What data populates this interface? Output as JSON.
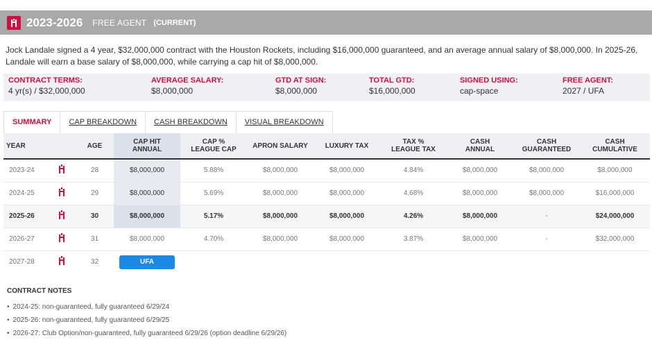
{
  "header": {
    "years": "2023-2026",
    "type": "FREE AGENT",
    "status": "(CURRENT)"
  },
  "description": "Jock Landale signed a 4 year, $32,000,000 contract with the Houston Rockets, including $16,000,000 guaranteed, and an average annual salary of $8,000,000. In 2025-26, Landale will earn a base salary of $8,000,000, while carrying a cap hit of $8,000,000.",
  "terms": [
    {
      "label": "CONTRACT TERMS:",
      "value": "4 yr(s) / $32,000,000"
    },
    {
      "label": "AVERAGE SALARY:",
      "value": "$8,000,000"
    },
    {
      "label": "GTD AT SIGN:",
      "value": "$8,000,000"
    },
    {
      "label": "TOTAL GTD:",
      "value": "$16,000,000"
    },
    {
      "label": "SIGNED USING:",
      "value": "cap-space"
    },
    {
      "label": "FREE AGENT:",
      "value": "2027 / UFA"
    }
  ],
  "tabs": [
    "SUMMARY",
    "CAP BREAKDOWN",
    "CASH BREAKDOWN",
    "VISUAL BREAKDOWN"
  ],
  "columns": {
    "year": "YEAR",
    "age": "AGE",
    "cap_hit_1": "CAP HIT",
    "cap_hit_2": "ANNUAL",
    "cap_pct_1": "CAP %",
    "cap_pct_2": "LEAGUE CAP",
    "apron": "APRON SALARY",
    "lux": "LUXURY TAX",
    "tax_pct_1": "TAX %",
    "tax_pct_2": "LEAGUE TAX",
    "cash_1": "CASH",
    "cash_2": "ANNUAL",
    "cash_g_1": "CASH",
    "cash_g_2": "GUARANTEED",
    "cash_c_1": "CASH",
    "cash_c_2": "CUMULATIVE"
  },
  "rows": [
    {
      "year": "2023-24",
      "age": "28",
      "cap_hit": "$8,000,000",
      "cap_pct": "5.88%",
      "apron": "$8,000,000",
      "lux": "$8,000,000",
      "tax_pct": "4.84%",
      "cash": "$8,000,000",
      "cash_g": "$8,000,000",
      "cash_c": "$8,000,000"
    },
    {
      "year": "2024-25",
      "age": "29",
      "cap_hit": "$8,000,000",
      "cap_pct": "5.69%",
      "apron": "$8,000,000",
      "lux": "$8,000,000",
      "tax_pct": "4.68%",
      "cash": "$8,000,000",
      "cash_g": "$8,000,000",
      "cash_c": "$16,000,000"
    },
    {
      "year": "2025-26",
      "age": "30",
      "cap_hit": "$8,000,000",
      "cap_pct": "5.17%",
      "apron": "$8,000,000",
      "lux": "$8,000,000",
      "tax_pct": "4.26%",
      "cash": "$8,000,000",
      "cash_g": "-",
      "cash_c": "$24,000,000"
    },
    {
      "year": "2026-27",
      "age": "31",
      "cap_hit": "$8,000,000",
      "cap_pct": "4.70%",
      "apron": "$8,000,000",
      "lux": "$8,000,000",
      "tax_pct": "3.87%",
      "cash": "$8,000,000",
      "cash_g": "-",
      "cash_c": "$32,000,000"
    },
    {
      "year": "2027-28",
      "age": "32",
      "ufa": "UFA"
    }
  ],
  "notes_title": "CONTRACT NOTES",
  "notes": [
    "2024-25: non-guaranteed, fully guaranteed 6/29/24",
    "2025-26: non-guaranteed, fully guaranteed 6/29/25",
    "2026-27: Club Option/non-guaranteed, fully guaranteed 6/29/26 (option deadline 6/29/26)"
  ],
  "colors": {
    "accent": "#ce1141",
    "header_bg": "#a9a9a9",
    "ufa_blue": "#1e88e5"
  },
  "icons": {
    "team_logo": "rockets-logo-icon"
  }
}
